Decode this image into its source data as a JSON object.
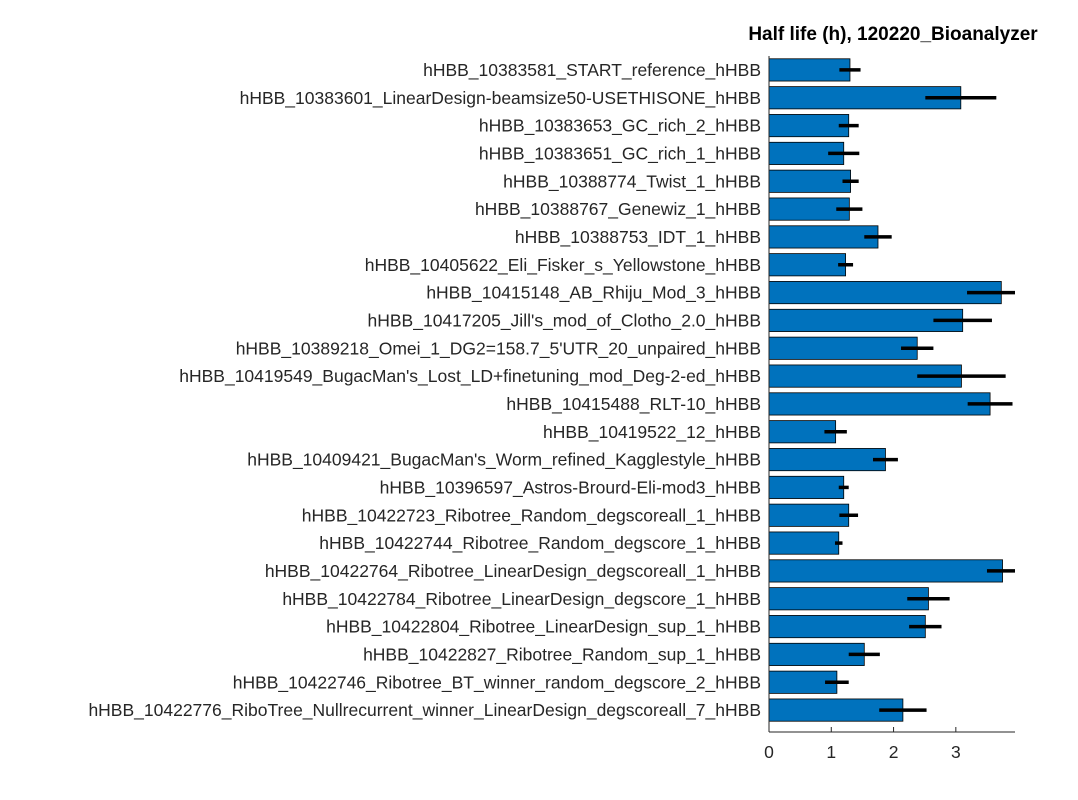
{
  "chart_data": {
    "type": "bar",
    "orientation": "horizontal",
    "title": "Half life (h), 120220_Bioanalyzer",
    "xlabel": "",
    "ylabel": "",
    "xlim": [
      0,
      3.95
    ],
    "xticks": [
      "0",
      "1",
      "2",
      "3"
    ],
    "bar_color": "#0072BD",
    "errorbar_color": "#000000",
    "grid": false,
    "legend": "none",
    "categories": [
      "hHBB_10383581_START_reference_hHBB",
      "hHBB_10383601_LinearDesign-beamsize50-USETHISONE_hHBB",
      "hHBB_10383653_GC_rich_2_hHBB",
      "hHBB_10383651_GC_rich_1_hHBB",
      "hHBB_10388774_Twist_1_hHBB",
      "hHBB_10388767_Genewiz_1_hHBB",
      "hHBB_10388753_IDT_1_hHBB",
      "hHBB_10405622_Eli_Fisker_s_Yellowstone_hHBB",
      "hHBB_10415148_AB_Rhiju_Mod_3_hHBB",
      "hHBB_10417205_Jill's_mod_of_Clotho_2.0_hHBB",
      "hHBB_10389218_Omei_1_DG2=158.7_5'UTR_20_unpaired_hHBB",
      "hHBB_10419549_BugacMan's_Lost_LD+finetuning_mod_Deg-2-ed_hHBB",
      "hHBB_10415488_RLT-10_hHBB",
      "hHBB_10419522_12_hHBB",
      "hHBB_10409421_BugacMan's_Worm_refined_Kagglestyle_hHBB",
      "hHBB_10396597_Astros-Brourd-Eli-mod3_hHBB",
      "hHBB_10422723_Ribotree_Random_degscoreall_1_hHBB",
      "hHBB_10422744_Ribotree_Random_degscore_1_hHBB",
      "hHBB_10422764_Ribotree_LinearDesign_degscoreall_1_hHBB",
      "hHBB_10422784_Ribotree_LinearDesign_degscore_1_hHBB",
      "hHBB_10422804_Ribotree_LinearDesign_sup_1_hHBB",
      "hHBB_10422827_Ribotree_Random_sup_1_hHBB",
      "hHBB_10422746_Ribotree_BT_winner_random_degscore_2_hHBB",
      "hHBB_10422776_RiboTree_Nullrecurrent_winner_LinearDesign_degscoreall_7_hHBB"
    ],
    "values": [
      1.3,
      3.08,
      1.28,
      1.2,
      1.31,
      1.29,
      1.75,
      1.23,
      3.73,
      3.11,
      2.38,
      3.09,
      3.55,
      1.07,
      1.87,
      1.2,
      1.28,
      1.12,
      3.75,
      2.56,
      2.51,
      1.53,
      1.09,
      2.15
    ],
    "error": [
      0.17,
      0.57,
      0.16,
      0.25,
      0.13,
      0.21,
      0.22,
      0.12,
      0.55,
      0.47,
      0.26,
      0.71,
      0.36,
      0.18,
      0.2,
      0.08,
      0.15,
      0.06,
      0.25,
      0.34,
      0.26,
      0.25,
      0.19,
      0.38
    ]
  }
}
